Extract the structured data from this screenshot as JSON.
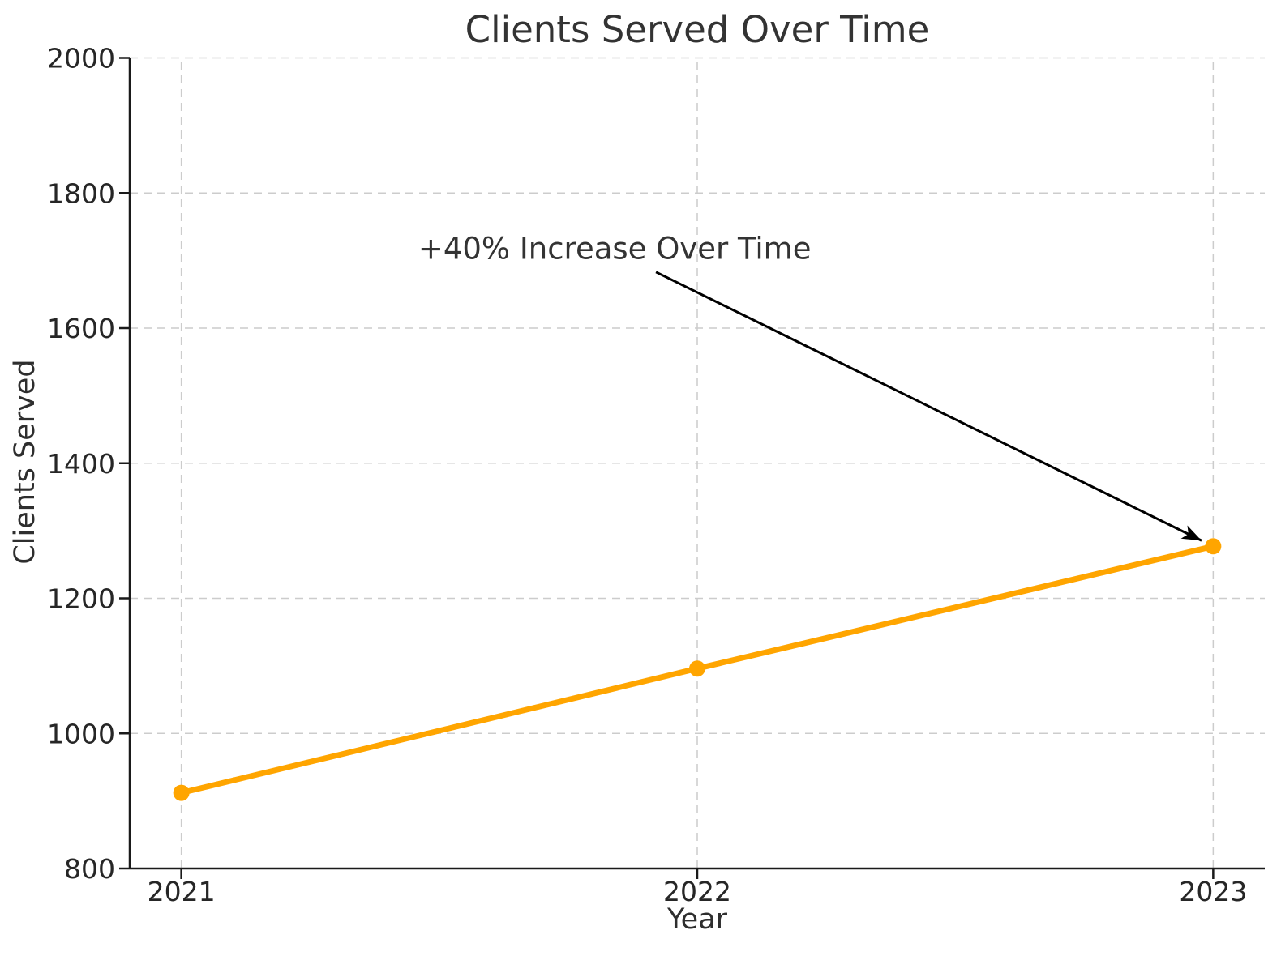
{
  "figure": {
    "title": "Clients Served Over Time",
    "xlabel": "Year",
    "ylabel": "Clients Served",
    "annotation_text": "+40% Increase Over Time"
  },
  "chart_data": {
    "type": "line",
    "title": "Clients Served Over Time",
    "xlabel": "Year",
    "ylabel": "Clients Served",
    "x": [
      2021,
      2022,
      2023
    ],
    "x_tick_labels": [
      "2021",
      "2022",
      "2023"
    ],
    "series": [
      {
        "name": "Clients Served",
        "values": [
          912,
          1096,
          1277
        ]
      }
    ],
    "ylim": [
      800,
      2000
    ],
    "yticks": [
      800,
      1000,
      1200,
      1400,
      1600,
      1800,
      2000
    ],
    "ytick_labels": [
      "800",
      "1000",
      "1200",
      "1400",
      "1600",
      "1800",
      "2000"
    ],
    "x_margin": 0.05,
    "grid": true,
    "grid_dashed": true,
    "legend_position": "none",
    "line_color": "#FFA500",
    "marker": "circle",
    "annotation": {
      "text": "+40% Increase Over Time",
      "text_pos": [
        2021.84,
        1718
      ],
      "arrow_from": [
        2021.92,
        1683
      ],
      "arrow_to": [
        2023,
        1277
      ],
      "color": "#000000"
    }
  },
  "colors": {
    "line": "#FFA500",
    "grid": "#cccccc",
    "spine": "#1a1a1a",
    "tick_text": "#262626",
    "title_text": "#333333",
    "arrow": "#000000",
    "background": "#ffffff"
  }
}
